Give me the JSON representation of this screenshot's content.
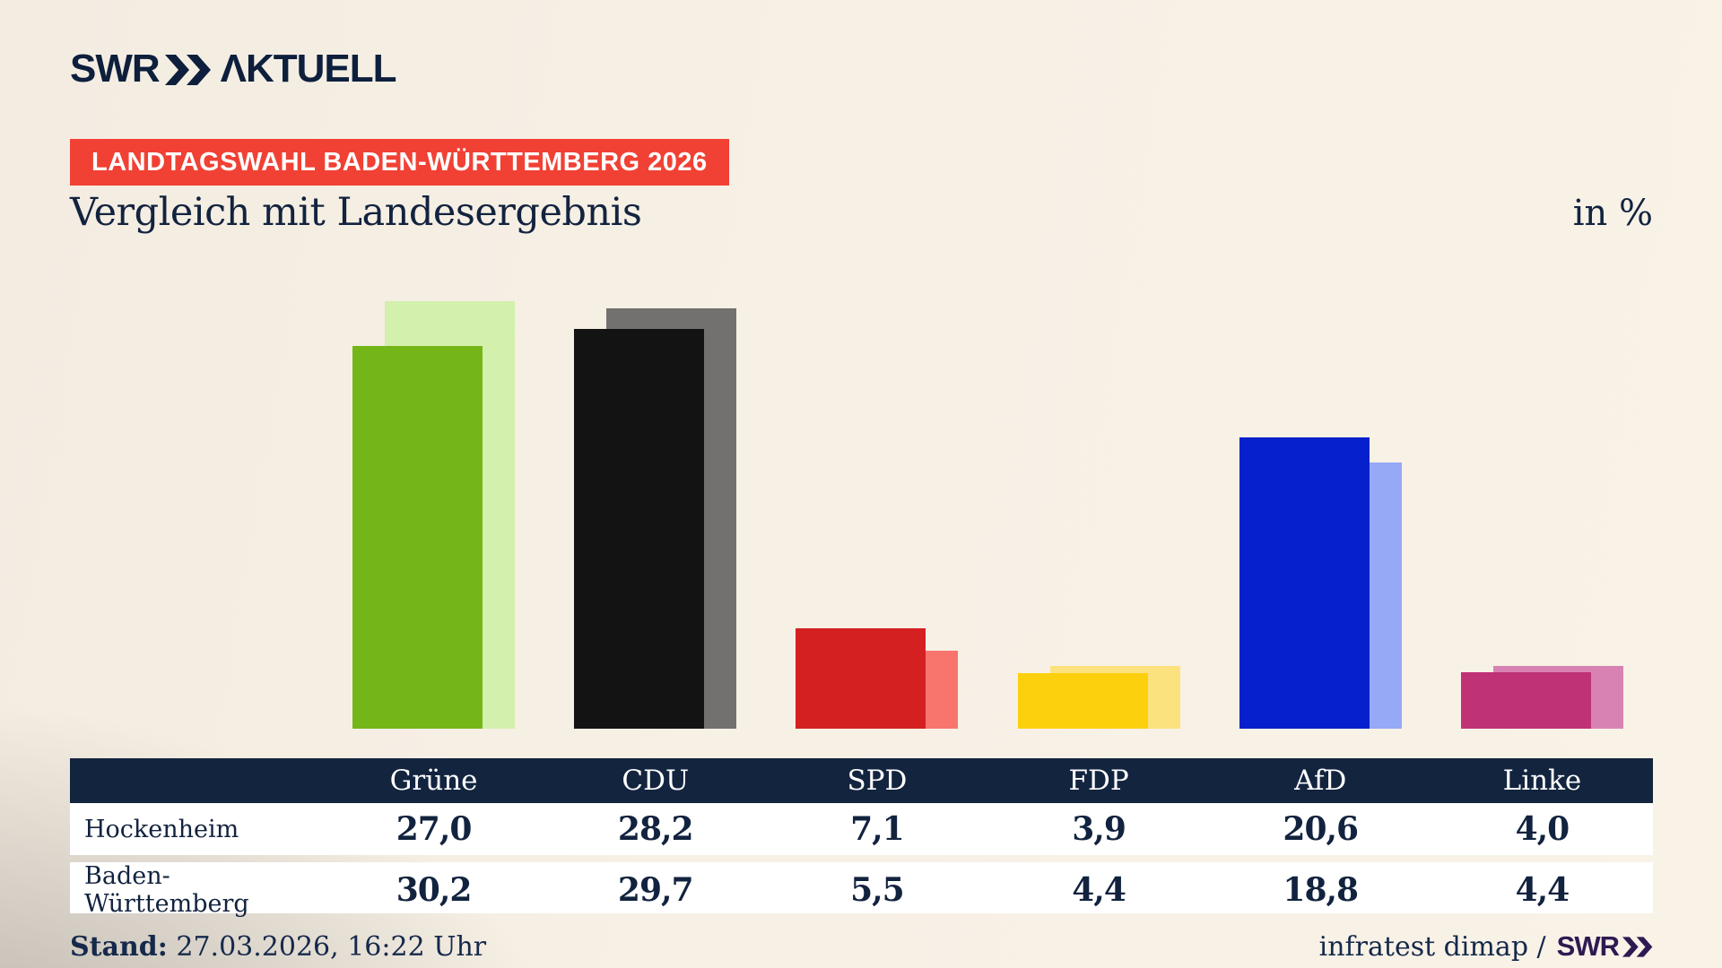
{
  "header": {
    "logo": {
      "brand": "SWR",
      "word_display": "ΛKTUELL"
    },
    "banner": "LANDTAGSWAHL BADEN-WÜRTTEMBERG 2026",
    "title": "Vergleich mit Landesergebnis",
    "unit_label": "in %"
  },
  "chart_data": {
    "type": "bar",
    "title": "Vergleich mit Landesergebnis",
    "unit": "%",
    "categories": [
      "Grüne",
      "CDU",
      "SPD",
      "FDP",
      "AfD",
      "Linke"
    ],
    "series": [
      {
        "name": "Hockenheim",
        "values": [
          27.0,
          28.2,
          7.1,
          3.9,
          20.6,
          4.0
        ],
        "display": [
          "27,0",
          "28,2",
          "7,1",
          "3,9",
          "20,6",
          "4,0"
        ]
      },
      {
        "name": "Baden-Württemberg",
        "values": [
          30.2,
          29.7,
          5.5,
          4.4,
          18.8,
          4.4
        ],
        "display": [
          "30,2",
          "29,7",
          "5,5",
          "4,4",
          "18,8",
          "4,4"
        ]
      }
    ],
    "colors": {
      "main": [
        "#74b618",
        "#131313",
        "#d42020",
        "#fdd00e",
        "#0520cc",
        "#bf3276"
      ],
      "shadow": [
        "#d3f0ac",
        "#727170",
        "#f8756e",
        "#fce27e",
        "#96a9f7",
        "#d882b4"
      ]
    },
    "ylim": [
      0,
      32
    ],
    "grid": false,
    "legend": "values shown in table below bars"
  },
  "footer": {
    "stand_label": "Stand:",
    "stand_value": "27.03.2026, 16:22 Uhr",
    "source_text": "infratest dimap /",
    "source_brand": "SWR"
  },
  "colors": {
    "banner_red": "#f14134",
    "navy": "#13243f",
    "background_cream": "#f7f0e5",
    "footer_brand_purple": "#2e1a52"
  }
}
